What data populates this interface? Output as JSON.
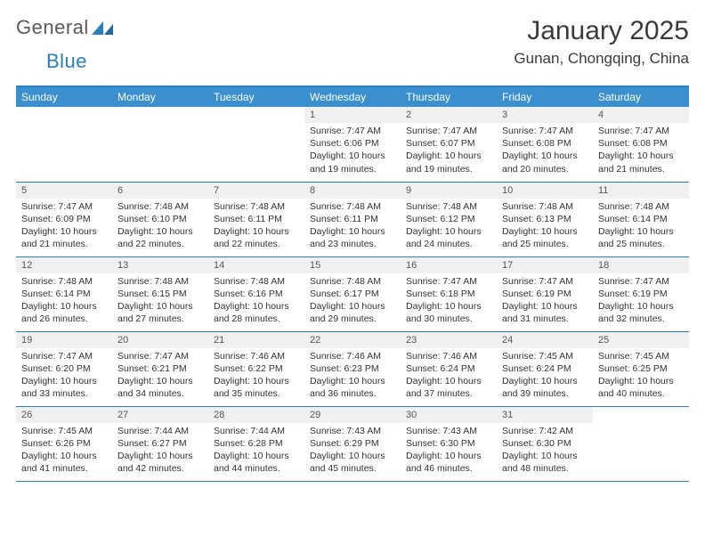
{
  "brand": {
    "name1": "General",
    "name2": "Blue"
  },
  "title": "January 2025",
  "location": "Gunan, Chongqing, China",
  "colors": {
    "header_bg": "#3a8fce",
    "divider": "#2a7fbf",
    "daynum_bg": "#f0f0f0",
    "text": "#333333",
    "title": "#3a3a3a"
  },
  "weekdays": [
    "Sunday",
    "Monday",
    "Tuesday",
    "Wednesday",
    "Thursday",
    "Friday",
    "Saturday"
  ],
  "grid": [
    [
      null,
      null,
      null,
      {
        "n": "1",
        "sr": "7:47 AM",
        "ss": "6:06 PM",
        "dl": "10 hours and 19 minutes."
      },
      {
        "n": "2",
        "sr": "7:47 AM",
        "ss": "6:07 PM",
        "dl": "10 hours and 19 minutes."
      },
      {
        "n": "3",
        "sr": "7:47 AM",
        "ss": "6:08 PM",
        "dl": "10 hours and 20 minutes."
      },
      {
        "n": "4",
        "sr": "7:47 AM",
        "ss": "6:08 PM",
        "dl": "10 hours and 21 minutes."
      }
    ],
    [
      {
        "n": "5",
        "sr": "7:47 AM",
        "ss": "6:09 PM",
        "dl": "10 hours and 21 minutes."
      },
      {
        "n": "6",
        "sr": "7:48 AM",
        "ss": "6:10 PM",
        "dl": "10 hours and 22 minutes."
      },
      {
        "n": "7",
        "sr": "7:48 AM",
        "ss": "6:11 PM",
        "dl": "10 hours and 22 minutes."
      },
      {
        "n": "8",
        "sr": "7:48 AM",
        "ss": "6:11 PM",
        "dl": "10 hours and 23 minutes."
      },
      {
        "n": "9",
        "sr": "7:48 AM",
        "ss": "6:12 PM",
        "dl": "10 hours and 24 minutes."
      },
      {
        "n": "10",
        "sr": "7:48 AM",
        "ss": "6:13 PM",
        "dl": "10 hours and 25 minutes."
      },
      {
        "n": "11",
        "sr": "7:48 AM",
        "ss": "6:14 PM",
        "dl": "10 hours and 25 minutes."
      }
    ],
    [
      {
        "n": "12",
        "sr": "7:48 AM",
        "ss": "6:14 PM",
        "dl": "10 hours and 26 minutes."
      },
      {
        "n": "13",
        "sr": "7:48 AM",
        "ss": "6:15 PM",
        "dl": "10 hours and 27 minutes."
      },
      {
        "n": "14",
        "sr": "7:48 AM",
        "ss": "6:16 PM",
        "dl": "10 hours and 28 minutes."
      },
      {
        "n": "15",
        "sr": "7:48 AM",
        "ss": "6:17 PM",
        "dl": "10 hours and 29 minutes."
      },
      {
        "n": "16",
        "sr": "7:47 AM",
        "ss": "6:18 PM",
        "dl": "10 hours and 30 minutes."
      },
      {
        "n": "17",
        "sr": "7:47 AM",
        "ss": "6:19 PM",
        "dl": "10 hours and 31 minutes."
      },
      {
        "n": "18",
        "sr": "7:47 AM",
        "ss": "6:19 PM",
        "dl": "10 hours and 32 minutes."
      }
    ],
    [
      {
        "n": "19",
        "sr": "7:47 AM",
        "ss": "6:20 PM",
        "dl": "10 hours and 33 minutes."
      },
      {
        "n": "20",
        "sr": "7:47 AM",
        "ss": "6:21 PM",
        "dl": "10 hours and 34 minutes."
      },
      {
        "n": "21",
        "sr": "7:46 AM",
        "ss": "6:22 PM",
        "dl": "10 hours and 35 minutes."
      },
      {
        "n": "22",
        "sr": "7:46 AM",
        "ss": "6:23 PM",
        "dl": "10 hours and 36 minutes."
      },
      {
        "n": "23",
        "sr": "7:46 AM",
        "ss": "6:24 PM",
        "dl": "10 hours and 37 minutes."
      },
      {
        "n": "24",
        "sr": "7:45 AM",
        "ss": "6:24 PM",
        "dl": "10 hours and 39 minutes."
      },
      {
        "n": "25",
        "sr": "7:45 AM",
        "ss": "6:25 PM",
        "dl": "10 hours and 40 minutes."
      }
    ],
    [
      {
        "n": "26",
        "sr": "7:45 AM",
        "ss": "6:26 PM",
        "dl": "10 hours and 41 minutes."
      },
      {
        "n": "27",
        "sr": "7:44 AM",
        "ss": "6:27 PM",
        "dl": "10 hours and 42 minutes."
      },
      {
        "n": "28",
        "sr": "7:44 AM",
        "ss": "6:28 PM",
        "dl": "10 hours and 44 minutes."
      },
      {
        "n": "29",
        "sr": "7:43 AM",
        "ss": "6:29 PM",
        "dl": "10 hours and 45 minutes."
      },
      {
        "n": "30",
        "sr": "7:43 AM",
        "ss": "6:30 PM",
        "dl": "10 hours and 46 minutes."
      },
      {
        "n": "31",
        "sr": "7:42 AM",
        "ss": "6:30 PM",
        "dl": "10 hours and 48 minutes."
      },
      null
    ]
  ],
  "labels": {
    "sunrise": "Sunrise:",
    "sunset": "Sunset:",
    "daylight": "Daylight:"
  }
}
